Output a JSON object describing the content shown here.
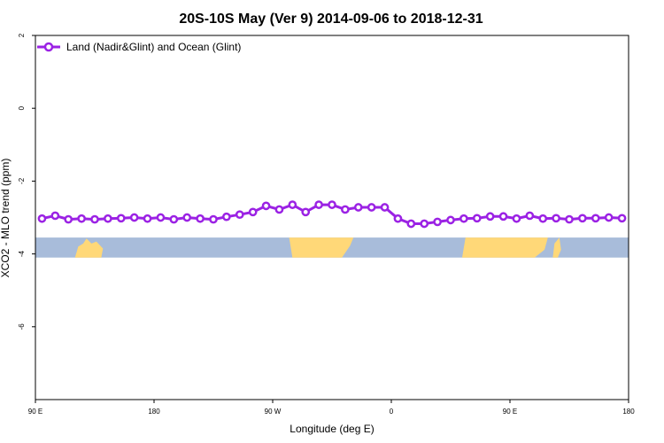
{
  "chart_data": {
    "type": "line",
    "title": "20S-10S May (Ver 9)   2014-09-06 to 2018-12-31",
    "xlabel": "Longitude (deg E)",
    "ylabel": "XCO2 - MLO trend (ppm)",
    "xlim": [
      90,
      450
    ],
    "ylim": [
      -8,
      2
    ],
    "x_tick_values": [
      90,
      162,
      234,
      306,
      378,
      450
    ],
    "x_tick_labels": [
      "90 E",
      "180",
      "90 W",
      "0",
      "90 E",
      "180"
    ],
    "y_tick_values": [
      2,
      0,
      -2,
      -4,
      -6
    ],
    "y_tick_labels": [
      "2",
      "0",
      "-2",
      "-4",
      "-6"
    ],
    "grid": false,
    "legend_position": "top-left",
    "map_strip_y_range": [
      -4.1,
      -3.55
    ],
    "colors": {
      "series": "#9b22e4",
      "ocean": "#a8bcda",
      "land": "#ffd878",
      "axis": "#000000"
    },
    "series": [
      {
        "name": "Land (Nadir&Glint) and Ocean (Glint)",
        "x": [
          94,
          102,
          110,
          118,
          126,
          134,
          142,
          150,
          158,
          166,
          174,
          182,
          190,
          198,
          206,
          214,
          222,
          230,
          238,
          246,
          254,
          262,
          270,
          278,
          286,
          294,
          302,
          310,
          318,
          326,
          334,
          342,
          350,
          358,
          366,
          374,
          382,
          390,
          398,
          406,
          414,
          422,
          430,
          438,
          446
        ],
        "y": [
          -3.03,
          -2.95,
          -3.05,
          -3.03,
          -3.05,
          -3.03,
          -3.02,
          -3.0,
          -3.03,
          -3.0,
          -3.05,
          -3.0,
          -3.03,
          -3.05,
          -2.98,
          -2.92,
          -2.85,
          -2.68,
          -2.78,
          -2.65,
          -2.85,
          -2.65,
          -2.65,
          -2.78,
          -2.72,
          -2.72,
          -2.72,
          -3.03,
          -3.17,
          -3.17,
          -3.12,
          -3.07,
          -3.03,
          -3.02,
          -2.97,
          -2.97,
          -3.03,
          -2.95,
          -3.03,
          -3.02,
          -3.05,
          -3.02,
          -3.02,
          -3.0,
          -3.02
        ]
      }
    ]
  }
}
